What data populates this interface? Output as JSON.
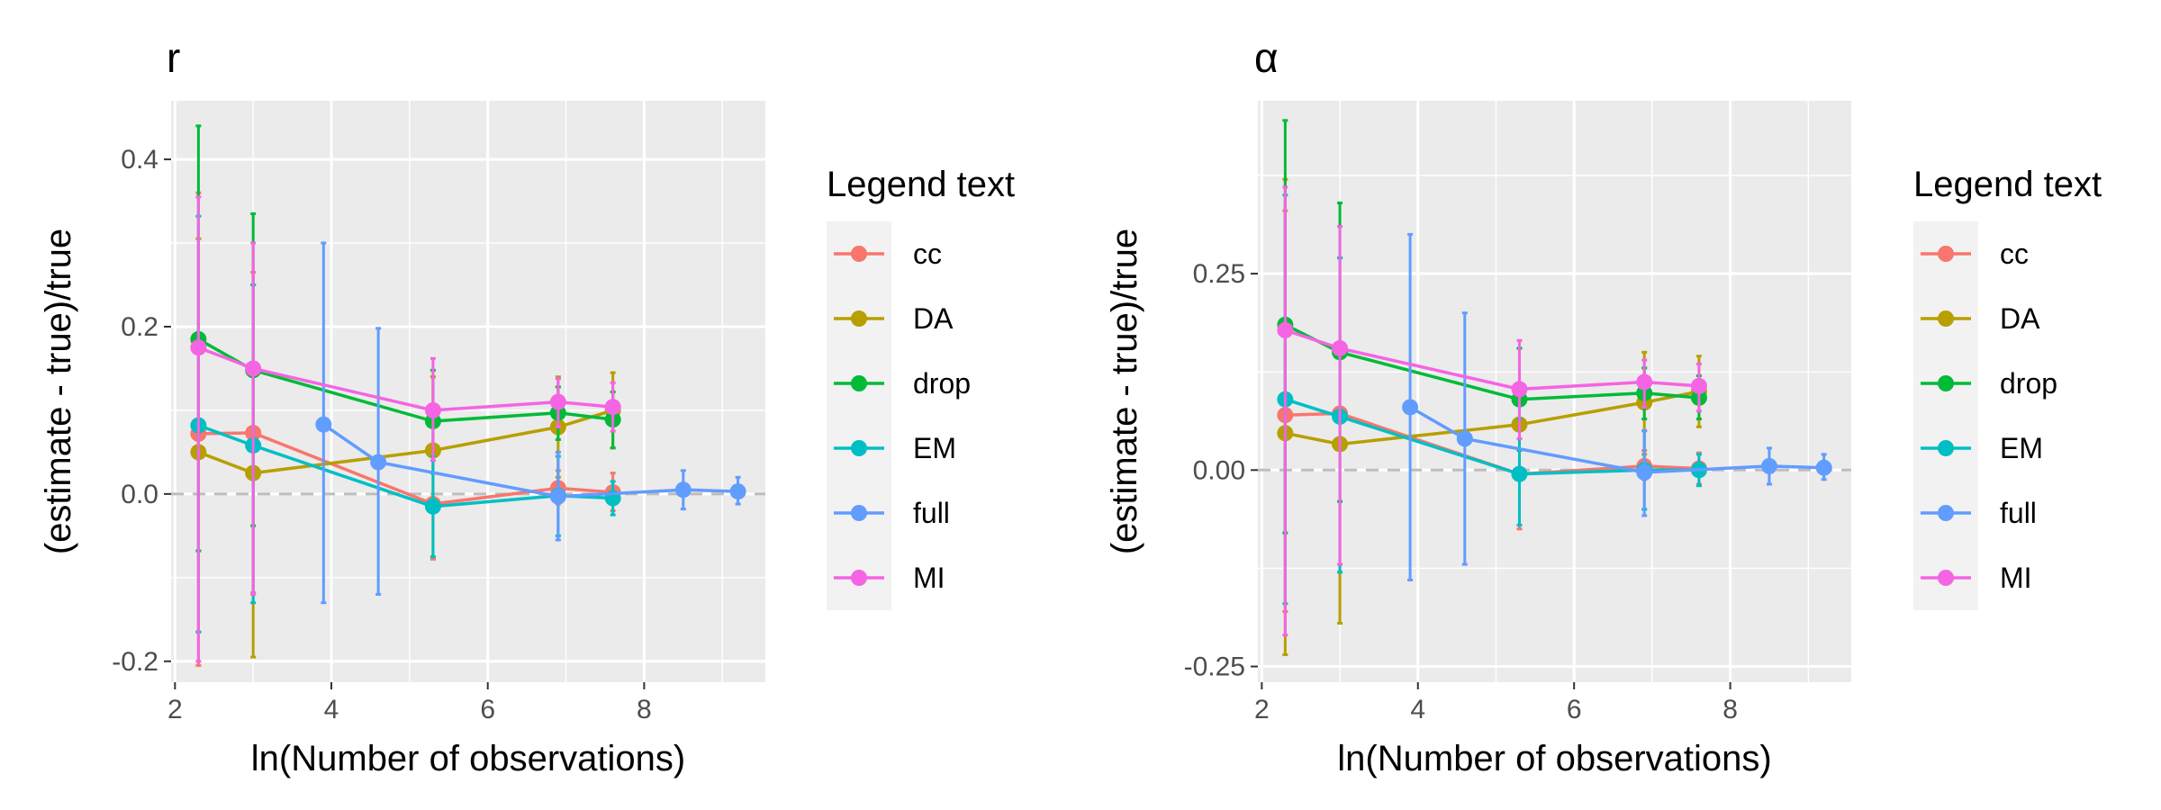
{
  "chart_data": [
    {
      "type": "line",
      "title": "r",
      "xlabel": "ln(Number of observations)",
      "ylabel": "(estimate - true)/true",
      "xlim": [
        1.95,
        9.55
      ],
      "ylim": [
        -0.225,
        0.47
      ],
      "xticks": [
        2,
        4,
        6,
        8
      ],
      "xtick_labels": [
        "2",
        "4",
        "6",
        "8"
      ],
      "yticks": [
        -0.2,
        0.0,
        0.2,
        0.4
      ],
      "ytick_labels": [
        "-0.2",
        "0.0",
        "0.2",
        "0.4"
      ],
      "reference_line": 0,
      "grid": true,
      "legend_title": "Legend text",
      "legend_position": "right",
      "series": [
        {
          "name": "cc",
          "color": "#F8766D",
          "x": [
            2.3,
            3.0,
            5.3,
            6.9,
            7.6
          ],
          "y": [
            0.072,
            0.073,
            -0.012,
            0.007,
            0.002
          ],
          "lo": [
            -0.205,
            -0.118,
            -0.078,
            -0.012,
            -0.02
          ],
          "hi": [
            0.36,
            0.265,
            0.14,
            0.028,
            0.025
          ]
        },
        {
          "name": "DA",
          "color": "#B79F00",
          "x": [
            2.3,
            3.0,
            5.3,
            6.9,
            7.6
          ],
          "y": [
            0.05,
            0.025,
            0.052,
            0.08,
            0.1
          ],
          "lo": [
            -0.165,
            -0.195,
            -0.075,
            0.02,
            0.055
          ],
          "hi": [
            0.305,
            0.25,
            0.14,
            0.14,
            0.145
          ]
        },
        {
          "name": "drop",
          "color": "#00BA38",
          "x": [
            2.3,
            3.0,
            5.3,
            6.9,
            7.6
          ],
          "y": [
            0.185,
            0.148,
            0.087,
            0.097,
            0.089
          ],
          "lo": [
            -0.068,
            -0.038,
            0.025,
            0.065,
            0.055
          ],
          "hi": [
            0.44,
            0.335,
            0.148,
            0.128,
            0.122
          ]
        },
        {
          "name": "EM",
          "color": "#00BFC4",
          "x": [
            2.3,
            3.0,
            5.3,
            6.9,
            7.6
          ],
          "y": [
            0.082,
            0.058,
            -0.015,
            -0.002,
            -0.005
          ],
          "lo": [
            -0.165,
            -0.13,
            -0.075,
            -0.05,
            -0.025
          ],
          "hi": [
            0.332,
            0.25,
            0.045,
            0.045,
            0.015
          ]
        },
        {
          "name": "full",
          "color": "#619CFF",
          "x": [
            3.9,
            4.6,
            6.9,
            8.5,
            9.2
          ],
          "y": [
            0.083,
            0.038,
            -0.003,
            0.005,
            0.003
          ],
          "lo": [
            -0.13,
            -0.12,
            -0.055,
            -0.018,
            -0.012
          ],
          "hi": [
            0.3,
            0.198,
            0.05,
            0.028,
            0.02
          ]
        },
        {
          "name": "MI",
          "color": "#F564E3",
          "x": [
            2.3,
            3.0,
            5.3,
            6.9,
            7.6
          ],
          "y": [
            0.175,
            0.15,
            0.1,
            0.11,
            0.104
          ],
          "lo": [
            -0.2,
            -0.12,
            0.04,
            0.08,
            0.075
          ],
          "hi": [
            0.355,
            0.3,
            0.162,
            0.138,
            0.133
          ]
        }
      ]
    },
    {
      "type": "line",
      "title": "α",
      "xlabel": "ln(Number of observations)",
      "ylabel": "(estimate - true)/true",
      "xlim": [
        1.95,
        9.55
      ],
      "ylim": [
        -0.27,
        0.47
      ],
      "xticks": [
        2,
        4,
        6,
        8
      ],
      "xtick_labels": [
        "2",
        "4",
        "6",
        "8"
      ],
      "yticks": [
        -0.25,
        0.0,
        0.25
      ],
      "ytick_labels": [
        "-0.25",
        "0.00",
        "0.25"
      ],
      "reference_line": 0,
      "grid": true,
      "legend_title": "Legend text",
      "legend_position": "right",
      "series": [
        {
          "name": "cc",
          "color": "#F8766D",
          "x": [
            2.3,
            3.0,
            5.3,
            6.9,
            7.6
          ],
          "y": [
            0.07,
            0.072,
            -0.005,
            0.005,
            0.002
          ],
          "lo": [
            -0.18,
            -0.13,
            -0.075,
            -0.012,
            -0.018
          ],
          "hi": [
            0.33,
            0.27,
            0.1,
            0.025,
            0.022
          ]
        },
        {
          "name": "DA",
          "color": "#B79F00",
          "x": [
            2.3,
            3.0,
            5.3,
            6.9,
            7.6
          ],
          "y": [
            0.047,
            0.033,
            0.058,
            0.086,
            0.1
          ],
          "lo": [
            -0.235,
            -0.195,
            0.0,
            0.02,
            0.055
          ],
          "hi": [
            0.37,
            0.27,
            0.155,
            0.15,
            0.145
          ]
        },
        {
          "name": "drop",
          "color": "#00BA38",
          "x": [
            2.3,
            3.0,
            5.3,
            6.9,
            7.6
          ],
          "y": [
            0.185,
            0.15,
            0.09,
            0.098,
            0.092
          ],
          "lo": [
            -0.08,
            -0.04,
            0.025,
            0.065,
            0.065
          ],
          "hi": [
            0.445,
            0.34,
            0.155,
            0.13,
            0.12
          ]
        },
        {
          "name": "EM",
          "color": "#00BFC4",
          "x": [
            2.3,
            3.0,
            5.3,
            6.9,
            7.6
          ],
          "y": [
            0.09,
            0.068,
            -0.005,
            0.0,
            0.0
          ],
          "lo": [
            -0.17,
            -0.13,
            -0.07,
            -0.05,
            -0.02
          ],
          "hi": [
            0.35,
            0.27,
            0.065,
            0.05,
            0.02
          ]
        },
        {
          "name": "full",
          "color": "#619CFF",
          "x": [
            3.9,
            4.6,
            6.9,
            8.5,
            9.2
          ],
          "y": [
            0.08,
            0.04,
            -0.003,
            0.005,
            0.003
          ],
          "lo": [
            -0.14,
            -0.12,
            -0.058,
            -0.018,
            -0.012
          ],
          "hi": [
            0.3,
            0.2,
            0.05,
            0.028,
            0.02
          ]
        },
        {
          "name": "MI",
          "color": "#F564E3",
          "x": [
            2.3,
            3.0,
            5.3,
            6.9,
            7.6
          ],
          "y": [
            0.178,
            0.155,
            0.103,
            0.112,
            0.107
          ],
          "lo": [
            -0.21,
            -0.12,
            0.04,
            0.08,
            0.075
          ],
          "hi": [
            0.36,
            0.31,
            0.165,
            0.14,
            0.135
          ]
        }
      ]
    }
  ]
}
